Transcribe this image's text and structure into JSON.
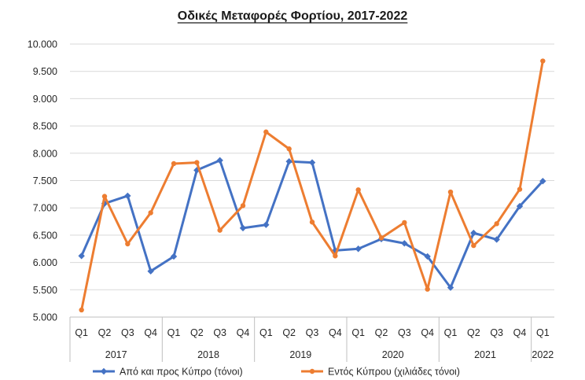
{
  "chart_data": {
    "type": "line",
    "title": "Οδικές Μεταφορές Φορτίου, 2017-2022",
    "xlabel": "",
    "ylabel": "",
    "ylim": [
      5000,
      10000
    ],
    "y_ticks": [
      "5.000",
      "5.500",
      "6.000",
      "6.500",
      "7.000",
      "7.500",
      "8.000",
      "8.500",
      "9.000",
      "9.500",
      "10.000"
    ],
    "y_tick_values": [
      5000,
      5500,
      6000,
      6500,
      7000,
      7500,
      8000,
      8500,
      9000,
      9500,
      10000
    ],
    "grid": "horizontal",
    "legend_position": "bottom",
    "categories": [
      "Q1",
      "Q2",
      "Q3",
      "Q4",
      "Q1",
      "Q2",
      "Q3",
      "Q4",
      "Q1",
      "Q2",
      "Q3",
      "Q4",
      "Q1",
      "Q2",
      "Q3",
      "Q4",
      "Q1",
      "Q2",
      "Q3",
      "Q4",
      "Q1"
    ],
    "year_groups": [
      {
        "label": "2017",
        "count": 4
      },
      {
        "label": "2018",
        "count": 4
      },
      {
        "label": "2019",
        "count": 4
      },
      {
        "label": "2020",
        "count": 4
      },
      {
        "label": "2021",
        "count": 4
      },
      {
        "label": "2022",
        "count": 1
      }
    ],
    "series": [
      {
        "name": "Από και προς Κύπρο (τόνοι)",
        "color": "#4472c4",
        "marker": "diamond",
        "values": [
          6120,
          7080,
          7220,
          5840,
          6110,
          7690,
          7870,
          6630,
          6690,
          7850,
          7830,
          6220,
          6250,
          6430,
          6350,
          6110,
          5540,
          6540,
          6420,
          7030,
          7490
        ]
      },
      {
        "name": "Εντός Κύπρου (χιλιάδες τόνοι)",
        "color": "#ed7d31",
        "marker": "circle",
        "values": [
          5130,
          7210,
          6340,
          6910,
          7810,
          7830,
          6590,
          7040,
          8390,
          8080,
          6740,
          6120,
          7330,
          6450,
          6730,
          5510,
          7290,
          6310,
          6710,
          7340,
          9690
        ]
      }
    ]
  }
}
